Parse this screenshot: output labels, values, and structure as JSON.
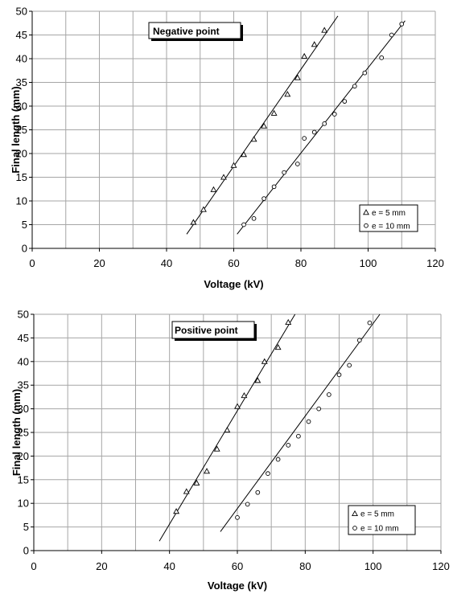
{
  "chart_data": [
    {
      "type": "scatter",
      "title": "Negative point",
      "xlabel": "Voltage (kV)",
      "ylabel": "Final length (mm)",
      "xlim": [
        0,
        120
      ],
      "ylim": [
        0,
        50
      ],
      "xticks": [
        "0",
        "20",
        "40",
        "60",
        "80",
        "100",
        "120"
      ],
      "yticks": [
        "0",
        "5",
        "10",
        "15",
        "20",
        "25",
        "30",
        "35",
        "40",
        "45",
        "50"
      ],
      "grid": true,
      "legend_position": "bottom-right",
      "series": [
        {
          "name": "e = 5 mm",
          "marker": "triangle",
          "points": [
            [
              48,
              5.5
            ],
            [
              51,
              8.2
            ],
            [
              54,
              12.4
            ],
            [
              57,
              15
            ],
            [
              60,
              17.5
            ],
            [
              63,
              19.8
            ],
            [
              66,
              23
            ],
            [
              69,
              25.8
            ],
            [
              72,
              28.5
            ],
            [
              76,
              32.5
            ],
            [
              79,
              36
            ],
            [
              81,
              40.5
            ],
            [
              84,
              43
            ],
            [
              87,
              46
            ]
          ],
          "fit": [
            [
              46,
              3
            ],
            [
              91,
              49
            ]
          ]
        },
        {
          "name": "e = 10 mm",
          "marker": "circle",
          "points": [
            [
              63,
              5
            ],
            [
              66,
              6.3
            ],
            [
              69,
              10.5
            ],
            [
              72,
              13
            ],
            [
              75,
              16
            ],
            [
              79,
              17.8
            ],
            [
              81,
              23.2
            ],
            [
              84,
              24.5
            ],
            [
              87,
              26.3
            ],
            [
              90,
              28.3
            ],
            [
              93,
              31
            ],
            [
              96,
              34.2
            ],
            [
              99,
              37
            ],
            [
              104,
              40.2
            ],
            [
              107,
              45
            ],
            [
              110,
              47.3
            ]
          ],
          "fit": [
            [
              61,
              3
            ],
            [
              111,
              48
            ]
          ]
        }
      ]
    },
    {
      "type": "scatter",
      "title": "Positive point",
      "xlabel": "Voltage (kV)",
      "ylabel": "Final length (mm)",
      "xlim": [
        0,
        120
      ],
      "ylim": [
        0,
        50
      ],
      "xticks": [
        "0",
        "20",
        "40",
        "60",
        "80",
        "100",
        "120"
      ],
      "yticks": [
        "0",
        "5",
        "10",
        "15",
        "20",
        "25",
        "30",
        "35",
        "40",
        "45",
        "50"
      ],
      "grid": true,
      "legend_position": "bottom-right",
      "series": [
        {
          "name": "e = 5 mm",
          "marker": "triangle",
          "points": [
            [
              42,
              8.3
            ],
            [
              45,
              12.5
            ],
            [
              48,
              14.3
            ],
            [
              51,
              16.8
            ],
            [
              54,
              21.5
            ],
            [
              57,
              25.5
            ],
            [
              60,
              30.5
            ],
            [
              62,
              32.8
            ],
            [
              66,
              36
            ],
            [
              68,
              40
            ],
            [
              72,
              43
            ],
            [
              75,
              48.3
            ]
          ],
          "fit": [
            [
              37,
              2
            ],
            [
              77,
              50
            ]
          ]
        },
        {
          "name": "e = 10 mm",
          "marker": "circle",
          "points": [
            [
              60,
              7
            ],
            [
              63,
              9.8
            ],
            [
              66,
              12.3
            ],
            [
              69,
              16.3
            ],
            [
              72,
              19.3
            ],
            [
              75,
              22.3
            ],
            [
              78,
              24.2
            ],
            [
              81,
              27.3
            ],
            [
              84,
              30
            ],
            [
              87,
              33
            ],
            [
              90,
              37.2
            ],
            [
              93,
              39.2
            ],
            [
              96,
              44.5
            ],
            [
              99,
              48.2
            ]
          ],
          "fit": [
            [
              55,
              4
            ],
            [
              102,
              50
            ]
          ]
        }
      ]
    }
  ]
}
